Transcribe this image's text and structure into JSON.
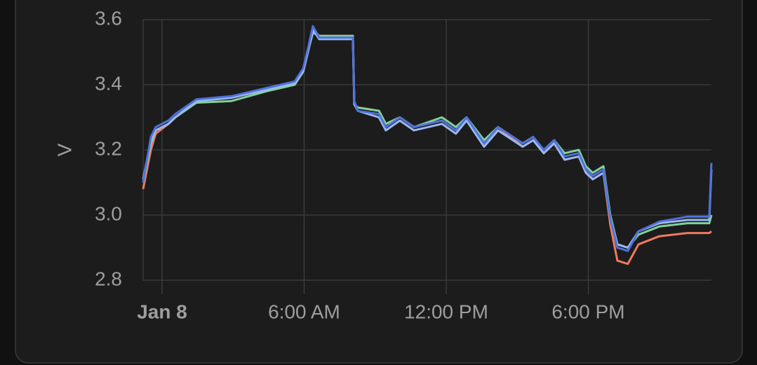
{
  "chart_data": {
    "type": "line",
    "ylabel": "V",
    "x": [
      -0.8,
      -0.47,
      -0.27,
      0.27,
      0.56,
      1.45,
      2.93,
      4.41,
      5.6,
      5.96,
      6.19,
      6.37,
      6.64,
      8.06,
      8.12,
      8.27,
      9.16,
      9.45,
      10.04,
      10.64,
      11.82,
      12.41,
      12.86,
      13.6,
      14.19,
      15.23,
      15.67,
      16.12,
      16.56,
      17.0,
      17.6,
      17.9,
      18.19,
      18.64,
      18.93,
      19.23,
      19.67,
      20.12,
      21.0,
      22.19,
      23.11,
      23.2
    ],
    "xlim": [
      -0.8,
      23.2
    ],
    "xticks": [
      {
        "value": 0,
        "label": "Jan 8"
      },
      {
        "value": 6,
        "label": "6:00 AM"
      },
      {
        "value": 12,
        "label": "12:00 PM"
      },
      {
        "value": 18,
        "label": "6:00 PM"
      }
    ],
    "ylim": [
      2.8,
      3.6
    ],
    "yticks": [
      2.8,
      {
        "value": 3,
        "label": "3.0"
      },
      3.2,
      3.4,
      3.6
    ],
    "grid": true,
    "series": [
      {
        "color": "#f07a5e",
        "values": [
          3.08,
          3.2,
          3.25,
          3.28,
          3.3,
          3.35,
          3.36,
          3.385,
          3.405,
          3.44,
          3.51,
          3.57,
          3.55,
          3.55,
          3.34,
          3.33,
          3.32,
          3.28,
          3.3,
          3.27,
          3.29,
          3.26,
          3.3,
          3.22,
          3.27,
          3.21,
          3.23,
          3.19,
          3.22,
          3.17,
          3.18,
          3.13,
          3.11,
          3.13,
          2.97,
          2.86,
          2.85,
          2.91,
          2.935,
          2.945,
          2.945,
          2.95
        ]
      },
      {
        "color": "#7fd39a",
        "values": [
          3.1,
          3.22,
          3.26,
          3.28,
          3.3,
          3.345,
          3.35,
          3.38,
          3.4,
          3.44,
          3.51,
          3.56,
          3.55,
          3.55,
          3.34,
          3.33,
          3.32,
          3.28,
          3.3,
          3.27,
          3.3,
          3.27,
          3.3,
          3.23,
          3.27,
          3.22,
          3.24,
          3.2,
          3.23,
          3.19,
          3.2,
          3.15,
          3.13,
          3.15,
          3.0,
          2.91,
          2.9,
          2.94,
          2.965,
          2.975,
          2.975,
          3.0
        ]
      },
      {
        "color": "#9cb8f2",
        "values": [
          3.11,
          3.23,
          3.26,
          3.28,
          3.3,
          3.35,
          3.36,
          3.385,
          3.405,
          3.44,
          3.51,
          3.57,
          3.54,
          3.54,
          3.34,
          3.32,
          3.3,
          3.26,
          3.29,
          3.26,
          3.28,
          3.25,
          3.29,
          3.21,
          3.26,
          3.21,
          3.23,
          3.19,
          3.22,
          3.17,
          3.18,
          3.13,
          3.11,
          3.13,
          2.99,
          2.91,
          2.9,
          2.95,
          2.975,
          2.985,
          2.985,
          3.14
        ]
      },
      {
        "color": "#4f72dc",
        "values": [
          3.1,
          3.24,
          3.27,
          3.29,
          3.31,
          3.355,
          3.365,
          3.39,
          3.41,
          3.45,
          3.52,
          3.58,
          3.545,
          3.545,
          3.35,
          3.32,
          3.31,
          3.27,
          3.3,
          3.27,
          3.29,
          3.26,
          3.3,
          3.22,
          3.27,
          3.22,
          3.24,
          3.2,
          3.23,
          3.18,
          3.19,
          3.14,
          3.12,
          3.14,
          2.99,
          2.9,
          2.89,
          2.95,
          2.98,
          2.995,
          2.995,
          3.16
        ]
      }
    ]
  }
}
